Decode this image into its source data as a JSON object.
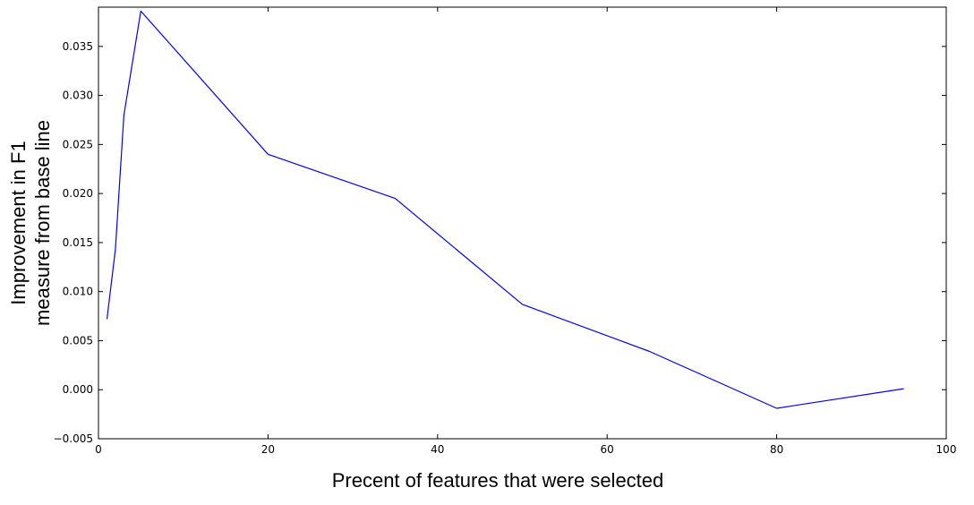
{
  "chart_data": {
    "type": "line",
    "title": "",
    "xlabel": "Precent of features that were selected",
    "ylabel_lines": [
      "Improvement in F1",
      "measure from base line"
    ],
    "xlim": [
      0,
      100
    ],
    "ylim": [
      -0.005,
      0.039
    ],
    "xticks": [
      0,
      20,
      40,
      60,
      80,
      100
    ],
    "xtick_labels": [
      "0",
      "20",
      "40",
      "60",
      "80",
      "100"
    ],
    "yticks": [
      -0.005,
      0.0,
      0.005,
      0.01,
      0.015,
      0.02,
      0.025,
      0.03,
      0.035
    ],
    "ytick_labels": [
      "−0.005",
      "0.000",
      "0.005",
      "0.010",
      "0.015",
      "0.020",
      "0.025",
      "0.030",
      "0.035"
    ],
    "grid": false,
    "legend": "none",
    "series": [
      {
        "color": "#0000ff",
        "x": [
          1,
          2,
          3,
          5,
          20,
          35,
          50,
          65,
          80,
          95
        ],
        "y": [
          0.0072,
          0.0143,
          0.028,
          0.0386,
          0.024,
          0.0195,
          0.0087,
          0.0039,
          -0.0019,
          0.0001
        ]
      }
    ]
  }
}
